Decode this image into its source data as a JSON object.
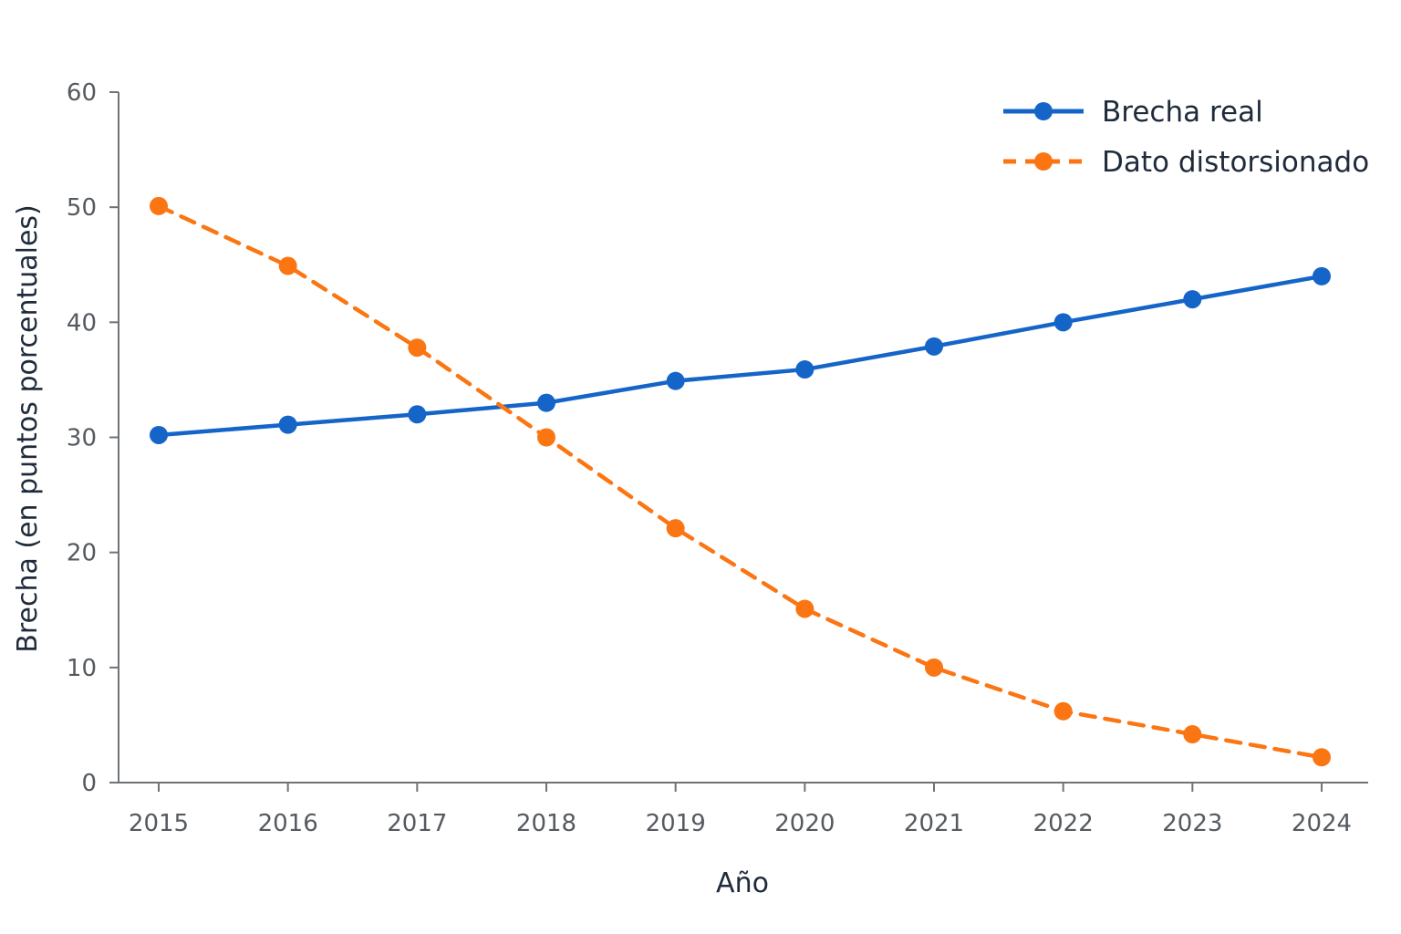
{
  "chart_data": {
    "type": "line",
    "xlabel": "Año",
    "ylabel": "Brecha (en puntos porcentuales)",
    "categories": [
      "2015",
      "2016",
      "2017",
      "2018",
      "2019",
      "2020",
      "2021",
      "2022",
      "2023",
      "2024"
    ],
    "ylim": [
      0,
      60
    ],
    "yticks": [
      "0",
      "10",
      "20",
      "30",
      "40",
      "50",
      "60"
    ],
    "grid": false,
    "legend_position": "top-right",
    "series": [
      {
        "name": "Brecha real",
        "color": "#1565c8",
        "line_style": "solid",
        "marker": "circle",
        "values": [
          30.2,
          31.1,
          32.0,
          33.0,
          34.9,
          35.9,
          37.9,
          40.0,
          42.0,
          44.0
        ]
      },
      {
        "name": "Dato distorsionado",
        "color": "#fb7613",
        "line_style": "dashed",
        "marker": "circle",
        "values": [
          50.1,
          44.9,
          37.8,
          30.0,
          22.1,
          15.1,
          10.0,
          6.2,
          4.2,
          2.2
        ]
      }
    ]
  }
}
